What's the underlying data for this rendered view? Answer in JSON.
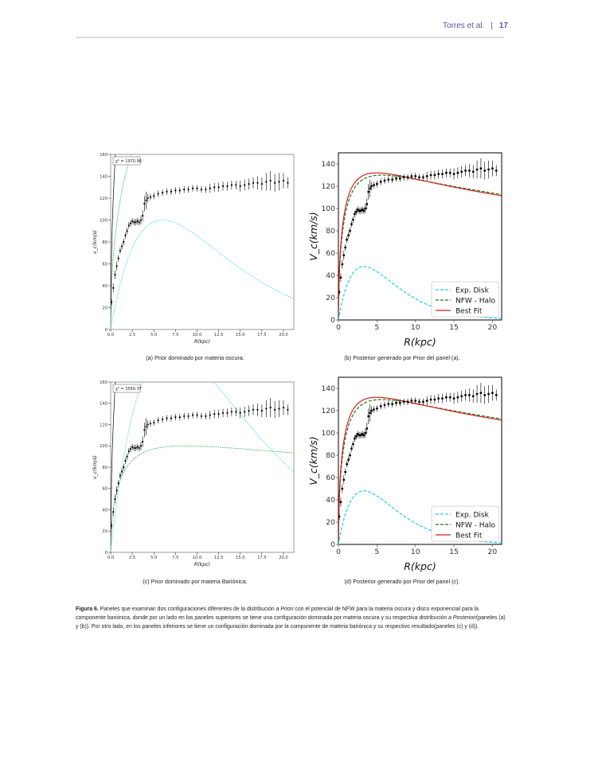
{
  "header": {
    "authors": "Torres et al.",
    "separator": "|",
    "page_number": "17"
  },
  "chart_data": [
    {
      "id": "a",
      "type": "line",
      "layout": "prior",
      "xlabel": "R(kpc)",
      "ylabel": "v_c(km/s)",
      "xlim": [
        0,
        21.2
      ],
      "ylim": [
        0,
        160
      ],
      "xticks": [
        "0.0",
        "2.5",
        "5.0",
        "7.5",
        "10.0",
        "12.5",
        "15.0",
        "17.5",
        "20.0"
      ],
      "yticks": [
        "0",
        "20",
        "40",
        "60",
        "80",
        "100",
        "120",
        "140",
        "160"
      ],
      "chi2_label": "χ² = 1970.96",
      "series": [
        {
          "kind": "total",
          "color": "#000000",
          "vmax": 420,
          "rs": 8
        },
        {
          "kind": "halo",
          "color": "#1a9e1a",
          "vmax": 240,
          "rs": 9
        },
        {
          "kind": "disk",
          "color": "#22d0e8",
          "vmax": 100,
          "rs": 6
        }
      ]
    },
    {
      "id": "b",
      "type": "line",
      "layout": "posterior",
      "xlabel": "R(kpc)",
      "ylabel": "V_c(km/s)",
      "xlim": [
        0,
        21.2
      ],
      "ylim": [
        0,
        150
      ],
      "xticks": [
        "0",
        "5",
        "10",
        "15",
        "20"
      ],
      "yticks": [
        "0",
        "20",
        "40",
        "60",
        "80",
        "100",
        "120",
        "140"
      ],
      "legend": [
        {
          "label": "Exp. Disk",
          "color": "#22d0e8",
          "dash": true
        },
        {
          "label": "NFW - Halo",
          "color": "#1a7a1a",
          "dash": true
        },
        {
          "label": "Best Fit",
          "color": "#d62020",
          "dash": false
        }
      ],
      "series": [
        {
          "kind": "disk",
          "color": "#22d0e8",
          "vmax": 48,
          "rs": 3.3
        },
        {
          "kind": "halo",
          "color": "#1a7a1a",
          "vmax": 130,
          "rs": 2.6
        },
        {
          "kind": "total",
          "color": "#d62020",
          "vmax": 132,
          "rs": 2.3
        }
      ]
    },
    {
      "id": "c",
      "type": "line",
      "layout": "prior",
      "xlabel": "R(kpc)",
      "ylabel": "v_c(km/s)",
      "xlim": [
        0,
        21.2
      ],
      "ylim": [
        0,
        160
      ],
      "xticks": [
        "0.0",
        "2.5",
        "5.0",
        "7.5",
        "10.0",
        "12.5",
        "15.0",
        "17.5",
        "20.0"
      ],
      "yticks": [
        "0",
        "20",
        "40",
        "60",
        "80",
        "100",
        "120",
        "140",
        "160"
      ],
      "chi2_label": "χ² = 3569.37",
      "series": [
        {
          "kind": "total",
          "color": "#000000",
          "vmax": 420,
          "rs": 8
        },
        {
          "kind": "disk",
          "color": "#22d0e8",
          "vmax": 190,
          "rs": 7
        },
        {
          "kind": "halo",
          "color": "#1a9e1a",
          "vmax": 100,
          "rs": 4
        }
      ]
    },
    {
      "id": "d",
      "type": "line",
      "layout": "posterior",
      "xlabel": "R(kpc)",
      "ylabel": "V_c(km/s)",
      "xlim": [
        0,
        21.2
      ],
      "ylim": [
        0,
        150
      ],
      "xticks": [
        "0",
        "5",
        "10",
        "15",
        "20"
      ],
      "yticks": [
        "0",
        "20",
        "40",
        "60",
        "80",
        "100",
        "120",
        "140"
      ],
      "legend": [
        {
          "label": "Exp. Disk",
          "color": "#22d0e8",
          "dash": true
        },
        {
          "label": "NFW - Halo",
          "color": "#1a7a1a",
          "dash": true
        },
        {
          "label": "Best Fit",
          "color": "#d62020",
          "dash": false
        }
      ],
      "series": [
        {
          "kind": "disk",
          "color": "#22d0e8",
          "vmax": 48,
          "rs": 3.3
        },
        {
          "kind": "halo",
          "color": "#1a7a1a",
          "vmax": 130,
          "rs": 2.6
        },
        {
          "kind": "total",
          "color": "#d62020",
          "vmax": 132,
          "rs": 2.3
        }
      ]
    }
  ],
  "observed_points": {
    "x": [
      0.1,
      0.3,
      0.5,
      0.7,
      0.9,
      1.1,
      1.3,
      1.5,
      1.7,
      1.9,
      2.1,
      2.3,
      2.5,
      2.7,
      2.9,
      3.1,
      3.3,
      3.5,
      3.7,
      3.9,
      4.1,
      4.3,
      4.6,
      5.0,
      5.5,
      6.0,
      6.5,
      7.0,
      7.5,
      8.0,
      8.5,
      9.0,
      9.5,
      10.0,
      10.5,
      11.0,
      11.5,
      12.0,
      12.5,
      13.0,
      13.5,
      14.0,
      14.5,
      15.0,
      15.5,
      16.0,
      16.5,
      17.0,
      17.5,
      18.0,
      18.5,
      19.0,
      19.5,
      20.0,
      20.5
    ],
    "y": [
      25,
      38,
      50,
      58,
      65,
      72,
      76,
      80,
      86,
      90,
      95,
      97,
      99,
      98,
      98,
      99,
      98,
      100,
      104,
      115,
      118,
      120,
      121,
      122,
      124,
      125,
      126,
      126,
      127,
      127,
      128,
      128,
      129,
      129,
      128,
      128,
      129,
      130,
      130,
      131,
      131,
      132,
      132,
      131,
      132,
      133,
      134,
      134,
      133,
      135,
      136,
      134,
      135,
      136,
      134
    ],
    "err": [
      3,
      4,
      4,
      4,
      3,
      3,
      3,
      3,
      3,
      3,
      3,
      3,
      3,
      3,
      3,
      3,
      3,
      4,
      5,
      7,
      8,
      4,
      3,
      3,
      3,
      3,
      3,
      3,
      3,
      3,
      3,
      3,
      3,
      3,
      3,
      3,
      4,
      4,
      4,
      4,
      4,
      4,
      4,
      5,
      5,
      5,
      5,
      6,
      6,
      8,
      9,
      8,
      8,
      7,
      5
    ]
  },
  "captions": {
    "a": "(a)  Prior dominado por materia oscura.",
    "b": "(b)  Posterior generado por Prior del panel (a).",
    "c": "(c)  Prior dominado por materia Bariónica.",
    "d": "(d)  Posterior generado por Prior del panel (c)."
  },
  "figure_caption": {
    "label": "Figura 6.",
    "part1": " Paneles que examinan dos configuraciones diferentes de la distribución ",
    "a_priori": "a Priori",
    "part2": " con el potencial de NFW para la materia oscura y disco exponencial para la componente bariónica, donde por un lado en los paneles superiores se tiene una configuración dominada por materia oscura y su respectiva distribución ",
    "a_posteriori": "a Posteriori",
    "part3": "(paneles (a) y (b)). Por otro lado, en los paneles inferiores se tiene un configuración dominada por la componente de materia bariónica y su respectivo resultado(paneles (c) y (d))."
  }
}
